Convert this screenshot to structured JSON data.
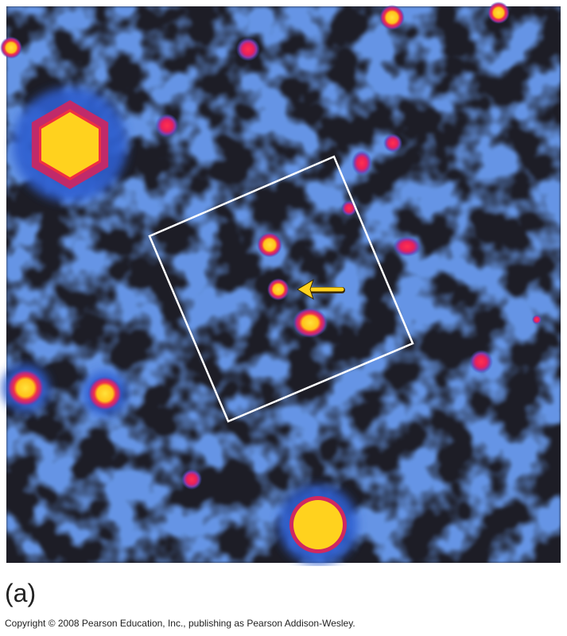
{
  "caption": {
    "label": "(a)",
    "copyright": "Copyright © 2008 Pearson Education, Inc., publishing as Pearson Addison-Wesley."
  }
}
